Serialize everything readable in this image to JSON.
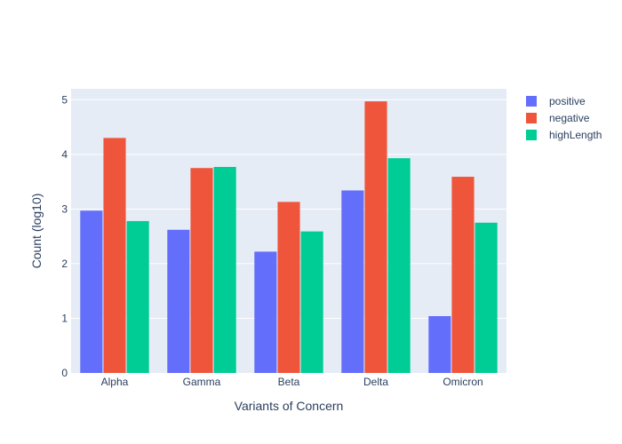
{
  "chart_data": {
    "type": "bar",
    "title": "",
    "xlabel": "Variants of Concern",
    "ylabel": "Count (log10)",
    "categories": [
      "Alpha",
      "Gamma",
      "Beta",
      "Delta",
      "Omicron"
    ],
    "series": [
      {
        "name": "positive",
        "color": "#636efa",
        "values": [
          2.97,
          2.62,
          2.22,
          3.34,
          1.04
        ]
      },
      {
        "name": "negative",
        "color": "#ef553b",
        "values": [
          4.3,
          3.75,
          3.13,
          4.97,
          3.59
        ]
      },
      {
        "name": "highLength",
        "color": "#00cc96",
        "values": [
          2.78,
          3.77,
          2.59,
          3.93,
          2.75
        ]
      }
    ],
    "ylim": [
      0,
      5.2
    ],
    "yticks": [
      0,
      1,
      2,
      3,
      4,
      5
    ],
    "grid": true,
    "legend_position": "top-right",
    "plot_background": "#e5ecf6"
  }
}
